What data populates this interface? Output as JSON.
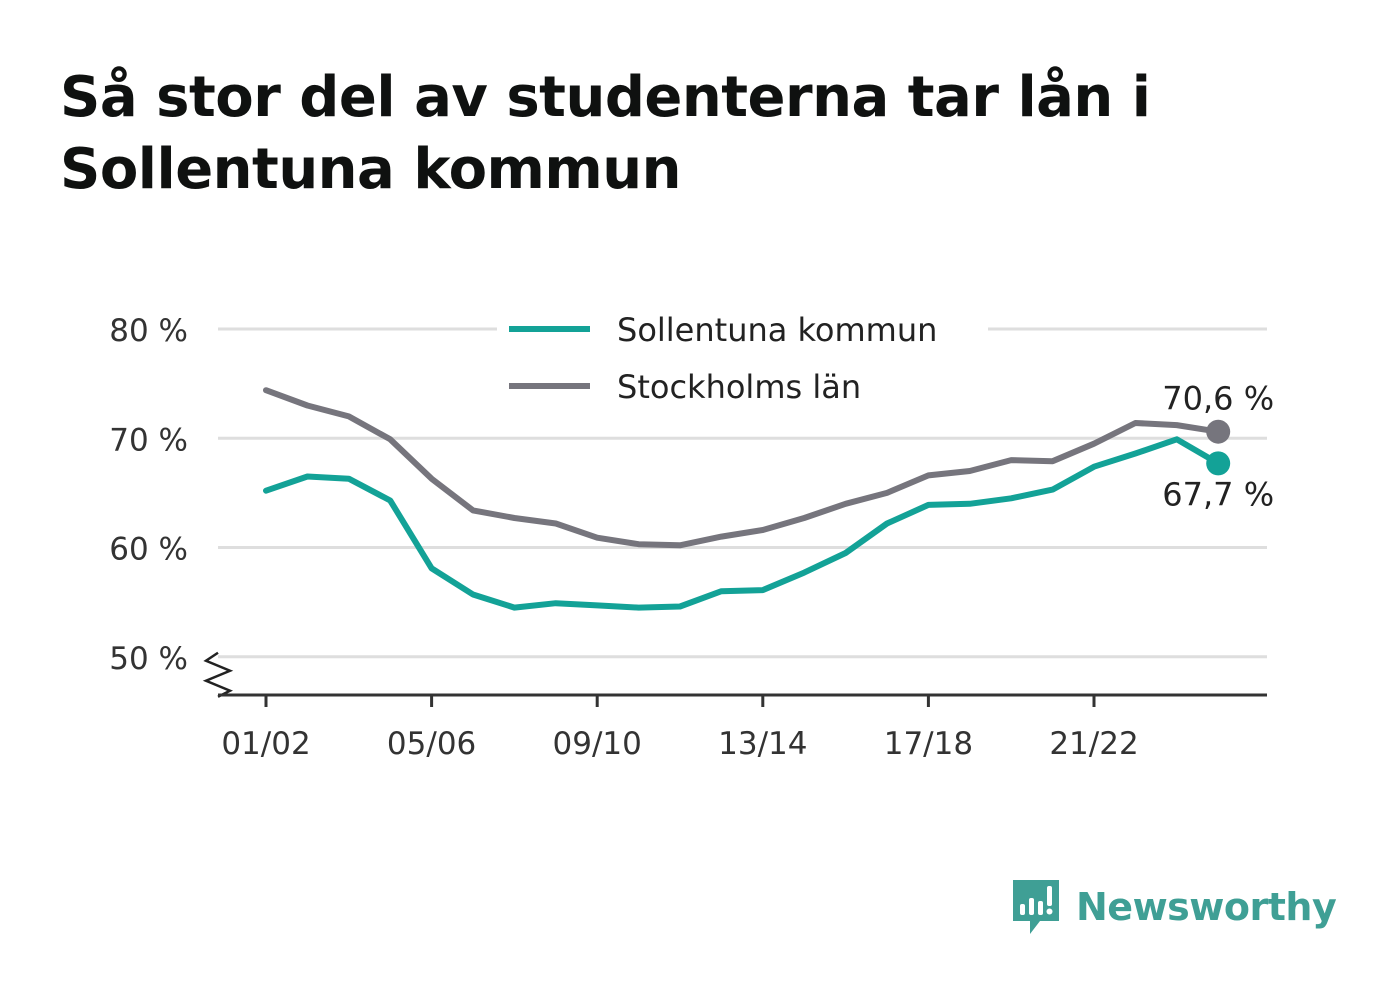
{
  "title": "Så stor del av studenterna tar lån i Sollentuna kommun",
  "brand": {
    "name": "Newsworthy",
    "color": "#3f9f95"
  },
  "chart_data": {
    "type": "line",
    "x": [
      "01/02",
      "02/03",
      "03/04",
      "04/05",
      "05/06",
      "06/07",
      "07/08",
      "08/09",
      "09/10",
      "10/11",
      "11/12",
      "12/13",
      "13/14",
      "14/15",
      "15/16",
      "16/17",
      "17/18",
      "18/19",
      "19/20",
      "20/21",
      "21/22",
      "22/23",
      "23/24",
      "24/25"
    ],
    "xtick_labels": [
      "01/02",
      "05/06",
      "09/10",
      "13/14",
      "17/18",
      "21/22"
    ],
    "y_ticks": [
      50,
      60,
      70,
      80
    ],
    "y_tick_labels": [
      "50 %",
      "60 %",
      "70 %",
      "80 %"
    ],
    "ylim": [
      46.5,
      80
    ],
    "y_axis_break": true,
    "grid": true,
    "legend_placement": "top-center",
    "series": [
      {
        "name": "Sollentuna kommun",
        "color": "#13a297",
        "values": [
          65.2,
          66.5,
          66.3,
          64.3,
          58.1,
          55.7,
          54.5,
          54.9,
          54.7,
          54.5,
          54.6,
          56.0,
          56.1,
          57.7,
          59.5,
          62.2,
          63.9,
          64.0,
          64.5,
          65.3,
          67.4,
          68.6,
          69.9,
          67.7
        ],
        "end_label": "67,7 %"
      },
      {
        "name": "Stockholms län",
        "color": "#76757d",
        "values": [
          74.4,
          73.0,
          72.0,
          69.9,
          66.3,
          63.4,
          62.7,
          62.2,
          60.9,
          60.3,
          60.2,
          61.0,
          61.6,
          62.7,
          64.0,
          65.0,
          66.6,
          67.0,
          68.0,
          67.9,
          69.5,
          71.4,
          71.2,
          70.6
        ],
        "end_label": "70,6 %"
      }
    ]
  }
}
